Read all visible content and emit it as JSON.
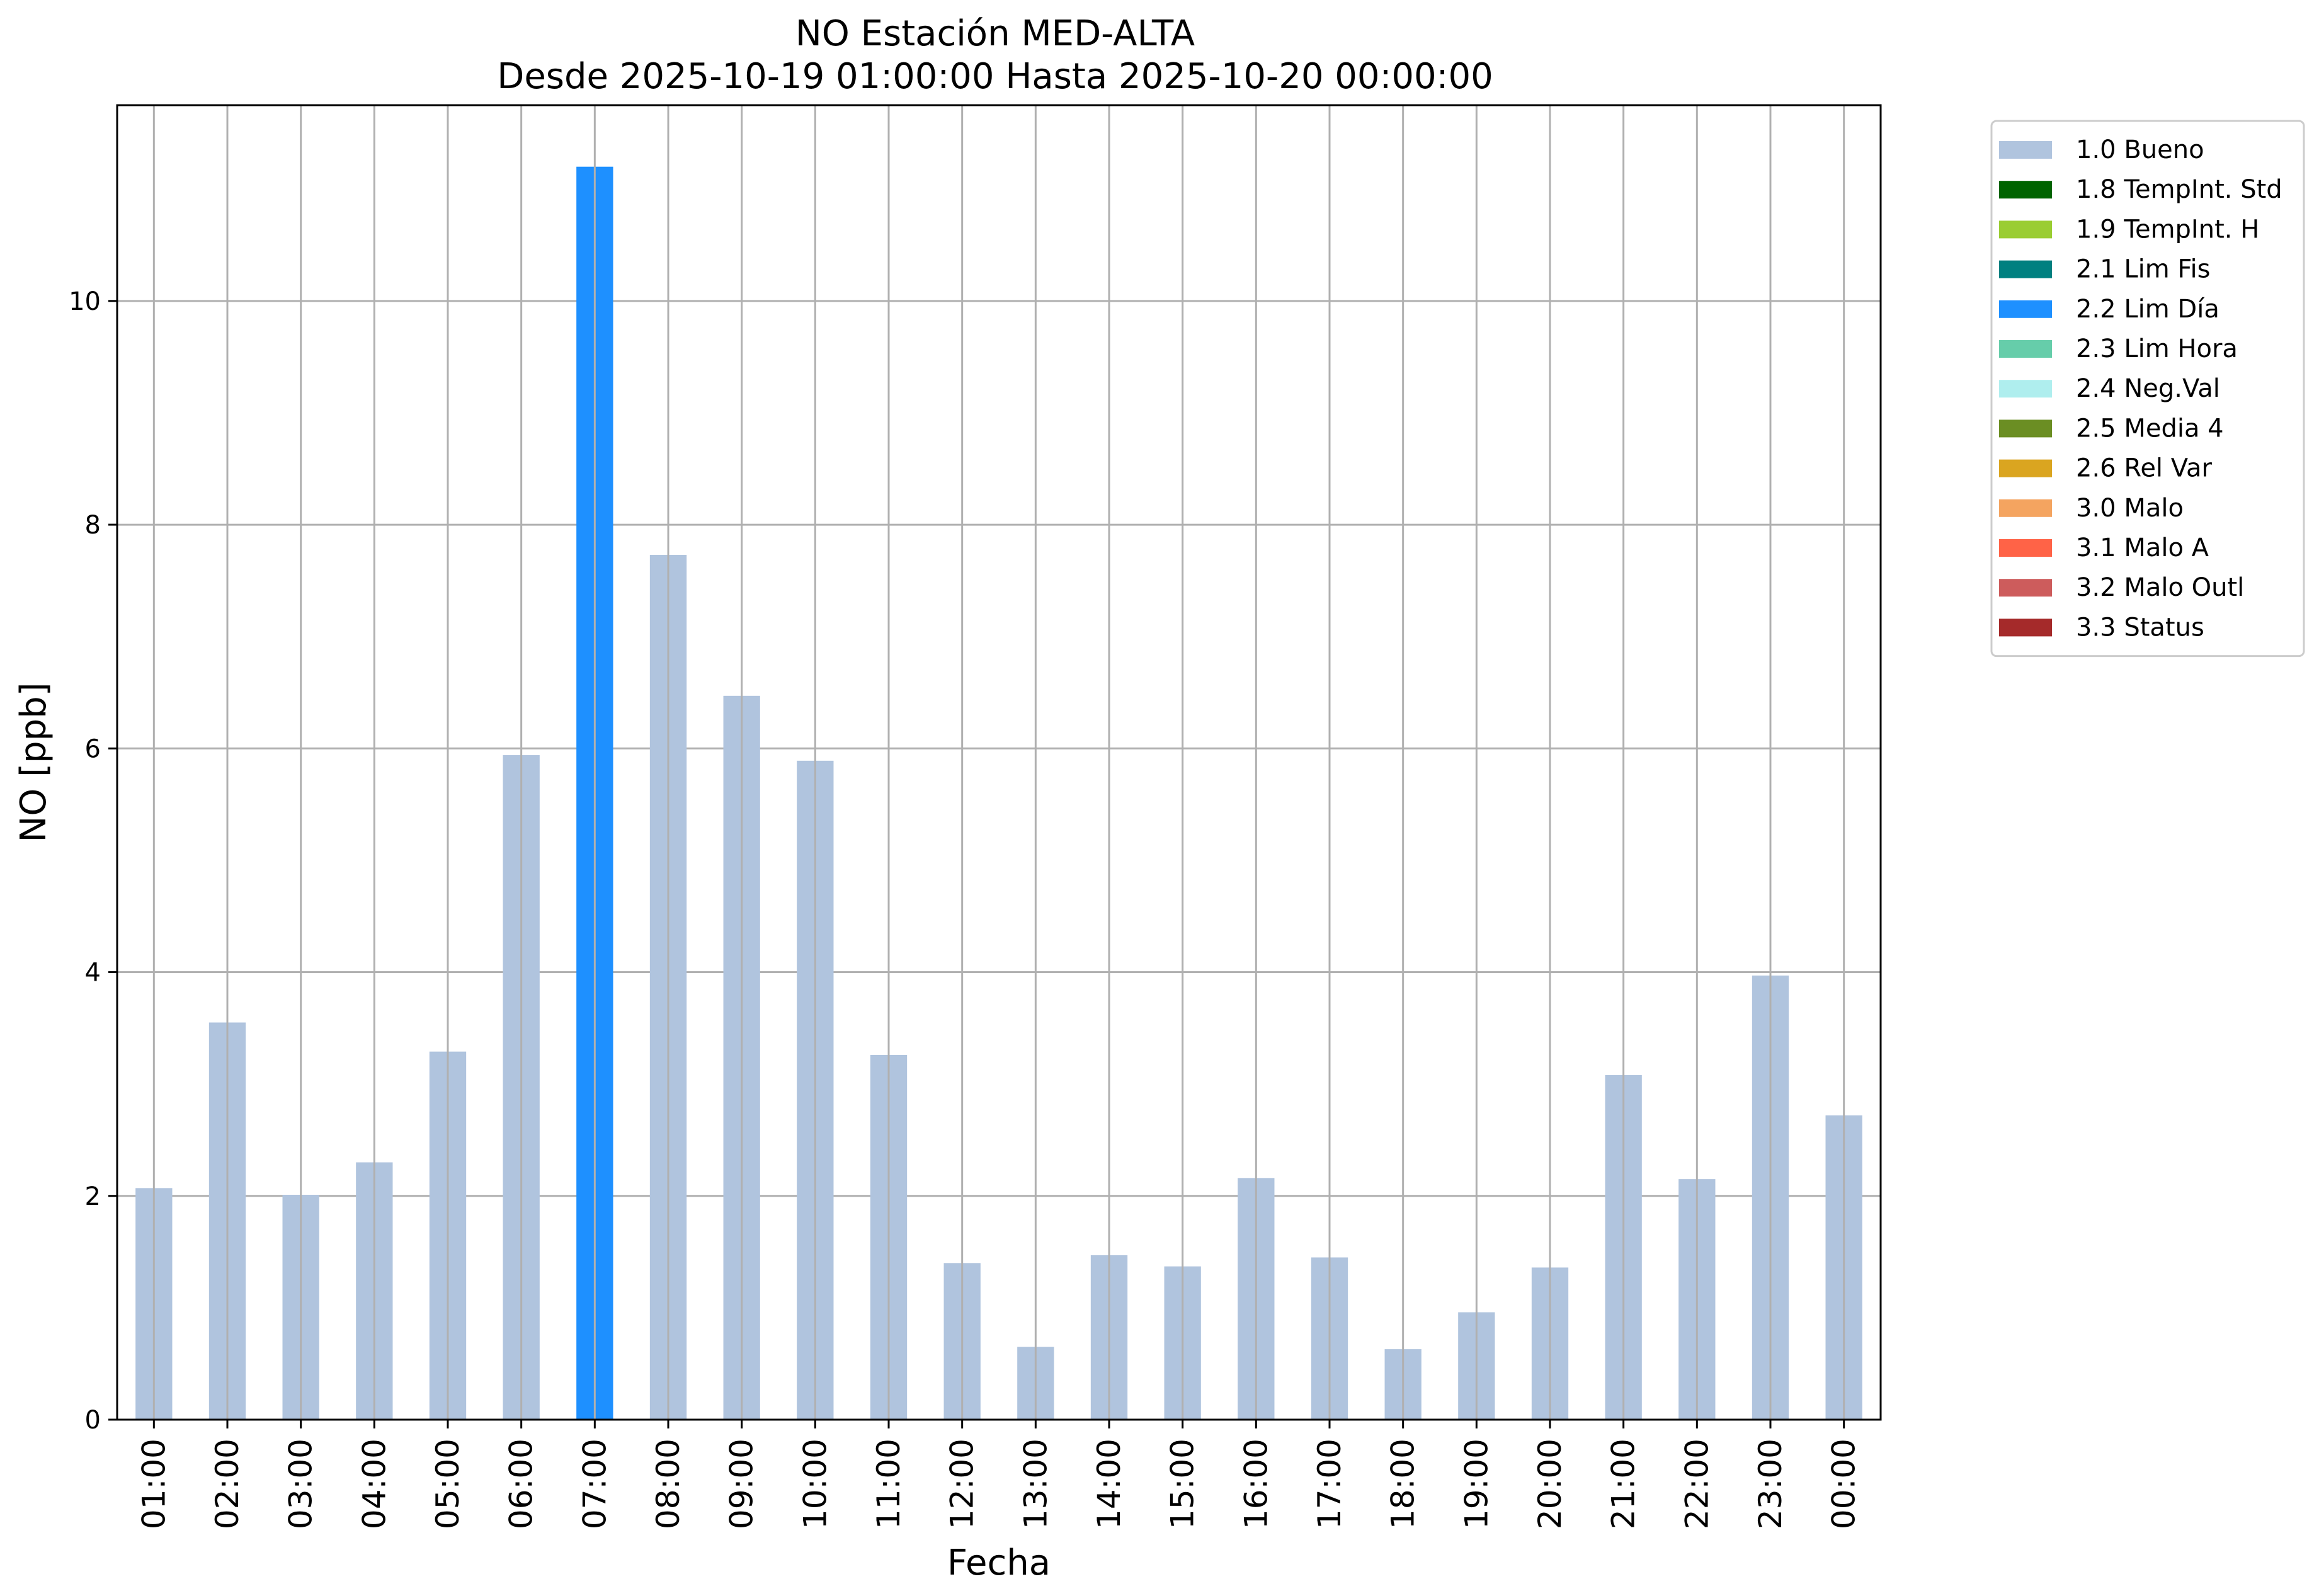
{
  "chart_data": {
    "type": "bar",
    "title": "NO Estación MED-ALTA",
    "subtitle": "Desde 2025-10-19 01:00:00 Hasta 2025-10-20 00:00:00",
    "xlabel": "Fecha",
    "ylabel": "NO [ppb]",
    "ylim": [
      0,
      11.75
    ],
    "yticks": [
      0,
      2,
      4,
      6,
      8,
      10
    ],
    "grid": true,
    "legend_position": "outside-top-right",
    "categories": [
      "01:00",
      "02:00",
      "03:00",
      "04:00",
      "05:00",
      "06:00",
      "07:00",
      "08:00",
      "09:00",
      "10:00",
      "11:00",
      "12:00",
      "13:00",
      "14:00",
      "15:00",
      "16:00",
      "17:00",
      "18:00",
      "19:00",
      "20:00",
      "21:00",
      "22:00",
      "23:00",
      "00:00"
    ],
    "values": [
      2.07,
      3.55,
      2.01,
      2.3,
      3.29,
      5.94,
      11.2,
      7.73,
      6.47,
      5.89,
      3.26,
      1.4,
      0.65,
      1.47,
      1.37,
      2.16,
      1.45,
      0.63,
      0.96,
      1.36,
      3.08,
      2.15,
      3.97,
      2.72
    ],
    "flags": [
      "1.0 Bueno",
      "1.0 Bueno",
      "1.0 Bueno",
      "1.0 Bueno",
      "1.0 Bueno",
      "1.0 Bueno",
      "2.2 Lim Día",
      "1.0 Bueno",
      "1.0 Bueno",
      "1.0 Bueno",
      "1.0 Bueno",
      "1.0 Bueno",
      "1.0 Bueno",
      "1.0 Bueno",
      "1.0 Bueno",
      "1.0 Bueno",
      "1.0 Bueno",
      "1.0 Bueno",
      "1.0 Bueno",
      "1.0 Bueno",
      "1.0 Bueno",
      "1.0 Bueno",
      "1.0 Bueno",
      "1.0 Bueno"
    ],
    "legend": [
      {
        "label": "1.0 Bueno",
        "color": "#b0c4de"
      },
      {
        "label": "1.8 TempInt. Std",
        "color": "#006400"
      },
      {
        "label": "1.9 TempInt. H",
        "color": "#9acd32"
      },
      {
        "label": "2.1 Lim Fis",
        "color": "#008080"
      },
      {
        "label": "2.2 Lim Día",
        "color": "#1e90ff"
      },
      {
        "label": "2.3 Lim Hora",
        "color": "#66cdaa"
      },
      {
        "label": "2.4 Neg.Val",
        "color": "#afeeee"
      },
      {
        "label": "2.5 Media 4",
        "color": "#6b8e23"
      },
      {
        "label": "2.6 Rel Var",
        "color": "#daa520"
      },
      {
        "label": "3.0 Malo",
        "color": "#f4a460"
      },
      {
        "label": "3.1 Malo A",
        "color": "#ff6347"
      },
      {
        "label": "3.2 Malo Outl",
        "color": "#cd5c5c"
      },
      {
        "label": "3.3 Status",
        "color": "#a52a2a"
      }
    ]
  }
}
